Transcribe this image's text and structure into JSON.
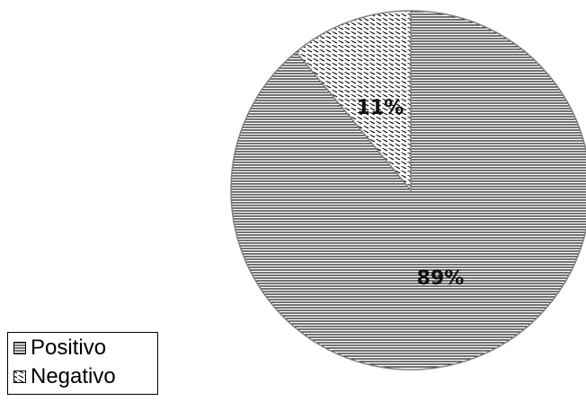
{
  "chart_data": {
    "type": "pie",
    "categories": [
      "Positivo",
      "Negativo"
    ],
    "values": [
      89,
      11
    ],
    "data_labels": [
      "89%",
      "11%"
    ],
    "legend": {
      "entries": [
        "Positivo",
        "Negativo"
      ],
      "placement": "bottom-left"
    },
    "patterns": {
      "Positivo": "horizontal-stripes",
      "Negativo": "diagonal-dashes"
    },
    "colors": {
      "stroke": "#808080",
      "fill_background": "#ffffff",
      "pattern_ink": "#000000"
    },
    "start_angle_deg": 0,
    "direction": "clockwise",
    "title": "",
    "xlabel": "",
    "ylabel": ""
  }
}
